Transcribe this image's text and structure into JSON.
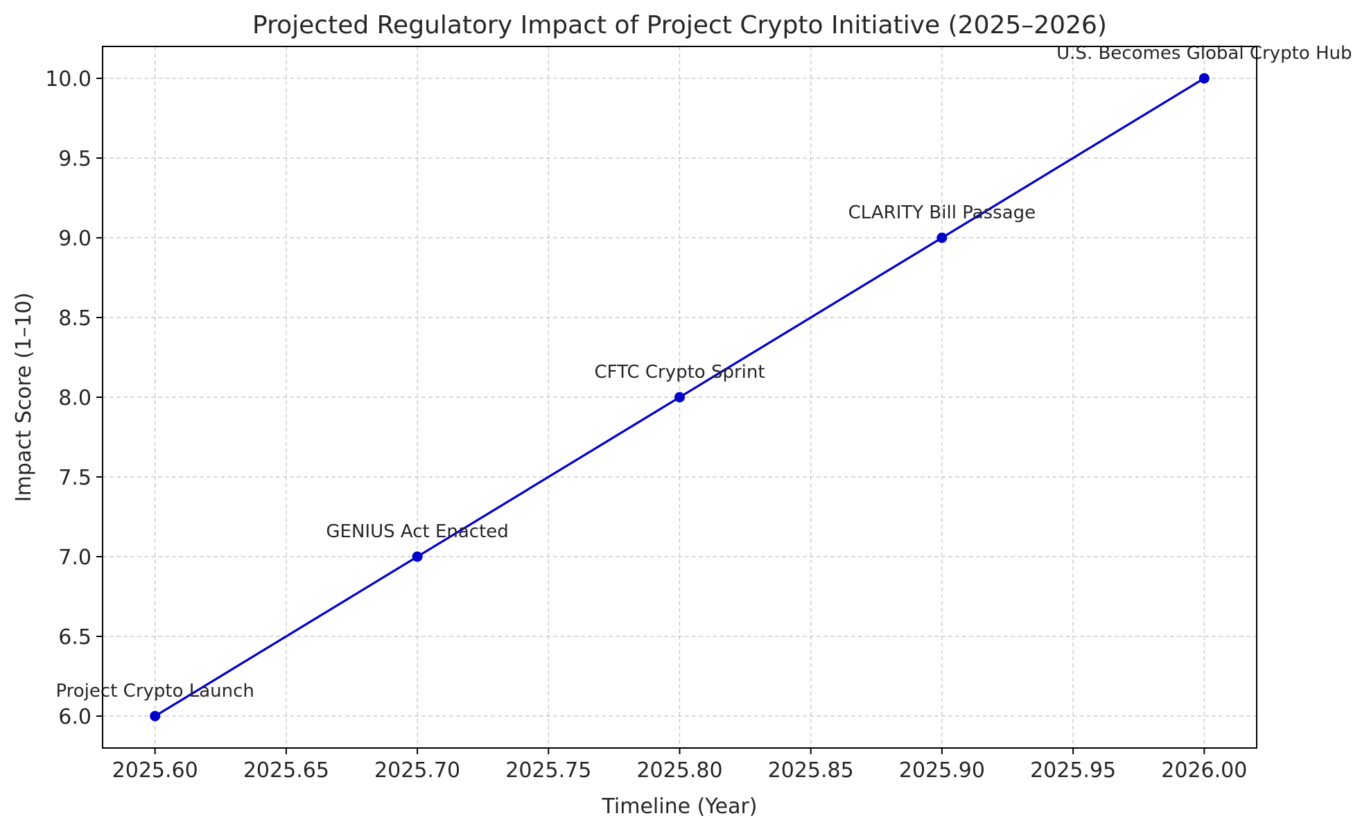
{
  "chart_data": {
    "type": "line",
    "title": "Projected Regulatory Impact of Project Crypto Initiative (2025–2026)",
    "xlabel": "Timeline (Year)",
    "ylabel": "Impact Score (1–10)",
    "xlim": [
      2025.58,
      2026.02
    ],
    "ylim": [
      5.8,
      10.2
    ],
    "xticks": [
      2025.6,
      2025.65,
      2025.7,
      2025.75,
      2025.8,
      2025.85,
      2025.9,
      2025.95,
      2026.0
    ],
    "xtick_labels": [
      "2025.60",
      "2025.65",
      "2025.70",
      "2025.75",
      "2025.80",
      "2025.85",
      "2025.90",
      "2025.95",
      "2026.00"
    ],
    "yticks": [
      6.0,
      6.5,
      7.0,
      7.5,
      8.0,
      8.5,
      9.0,
      9.5,
      10.0
    ],
    "ytick_labels": [
      "6.0",
      "6.5",
      "7.0",
      "7.5",
      "8.0",
      "8.5",
      "9.0",
      "9.5",
      "10.0"
    ],
    "grid": true,
    "series": [
      {
        "color": "#0000cc",
        "marker": "circle",
        "points": [
          {
            "x": 2025.6,
            "y": 6,
            "label": "Project Crypto Launch"
          },
          {
            "x": 2025.7,
            "y": 7,
            "label": "GENIUS Act Enacted"
          },
          {
            "x": 2025.8,
            "y": 8,
            "label": "CFTC Crypto Sprint"
          },
          {
            "x": 2025.9,
            "y": 9,
            "label": "CLARITY Bill Passage"
          },
          {
            "x": 2026.0,
            "y": 10,
            "label": "U.S. Becomes Global Crypto Hub"
          }
        ]
      }
    ]
  }
}
